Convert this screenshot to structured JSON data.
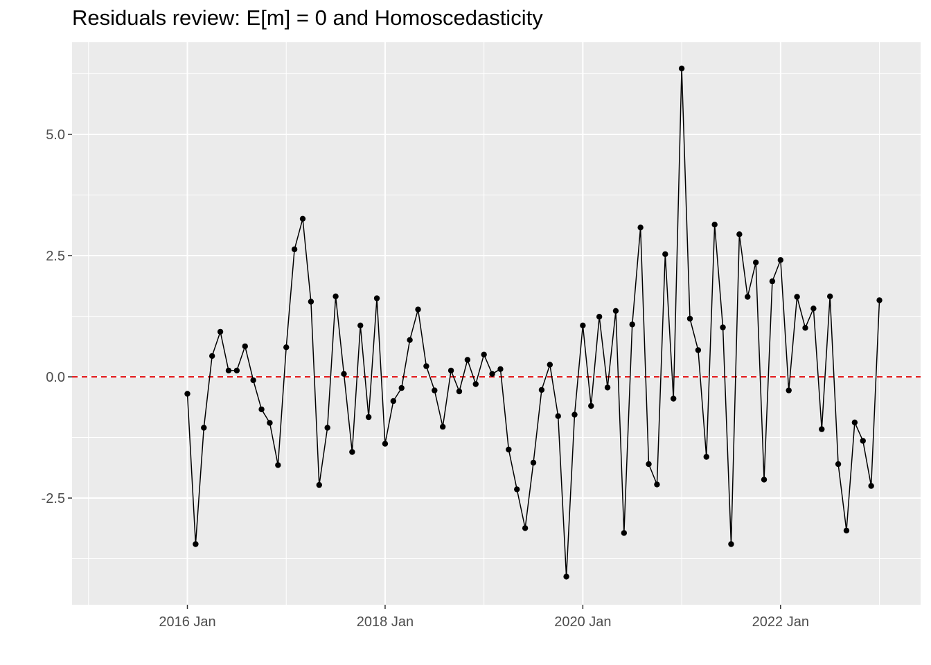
{
  "chart_data": {
    "type": "line",
    "title": "Residuals review: E[m] = 0 and Homoscedasticity",
    "xlabel": "",
    "ylabel": "",
    "x_ticks": [
      "2016 Jan",
      "2018 Jan",
      "2020 Jan",
      "2022 Jan"
    ],
    "y_ticks": [
      "-2.5",
      "0.0",
      "2.5",
      "5.0"
    ],
    "y_tick_values": [
      -2.5,
      0.0,
      2.5,
      5.0
    ],
    "xlim": [
      "2014-11",
      "2023-06"
    ],
    "ylim": [
      -4.7,
      6.9
    ],
    "grid": true,
    "background": "#ebebeb",
    "grid_color": "#ffffff",
    "line_color": "#000000",
    "reference_line": {
      "y": 0,
      "color": "#e41a1c",
      "style": "dashed"
    },
    "series": [
      {
        "start": "2016-01",
        "interval": "month",
        "values": [
          -0.35,
          -3.45,
          -1.05,
          0.43,
          0.93,
          0.13,
          0.13,
          0.63,
          -0.07,
          -0.67,
          -0.95,
          -1.82,
          0.61,
          2.63,
          3.26,
          1.55,
          -2.23,
          -1.05,
          1.66,
          0.06,
          -1.55,
          1.06,
          -0.83,
          1.62,
          -1.38,
          -0.5,
          -0.23,
          0.76,
          1.39,
          0.22,
          -0.28,
          -1.03,
          0.13,
          -0.3,
          0.35,
          -0.15,
          0.46,
          0.06,
          0.16,
          -1.5,
          -2.32,
          -3.12,
          -1.77,
          -0.27,
          0.25,
          -0.81,
          -4.12,
          -0.78,
          1.06,
          -0.6,
          1.24,
          -0.22,
          1.36,
          -3.22,
          1.08,
          3.08,
          -1.8,
          -2.22,
          2.53,
          -0.45,
          6.36,
          1.2,
          0.55,
          -1.65,
          3.14,
          1.02,
          -3.45,
          2.94,
          1.65,
          2.36,
          -2.12,
          1.97,
          2.41,
          -0.28,
          1.65,
          1.01,
          1.41,
          -1.08,
          1.66,
          -1.8,
          -3.17,
          -0.94,
          -1.32,
          -2.25,
          1.58
        ]
      }
    ]
  }
}
